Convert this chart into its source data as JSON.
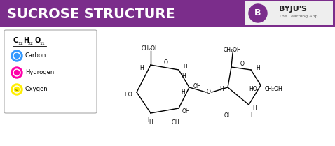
{
  "title": "SUCROSE STRUCTURE",
  "title_bg": "#7B2D8B",
  "title_color": "#FFFFFF",
  "bg_color": "#FFFFFF",
  "legend_items": [
    {
      "label": "Carbon",
      "color": "#3399FF"
    },
    {
      "label": "Hydrogen",
      "color": "#FF00AA"
    },
    {
      "label": "Oxygen",
      "color": "#FFEE00"
    }
  ],
  "byju_purple": "#7B2D8B"
}
